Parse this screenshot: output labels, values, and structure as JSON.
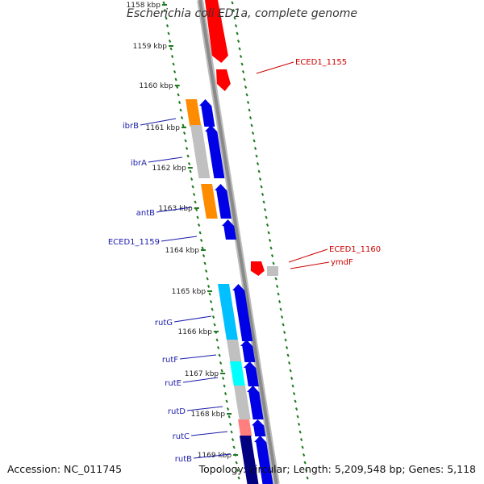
{
  "title": "Escherichia coli ED1a, complete genome",
  "footer": {
    "accession": "Accession: NC_011745",
    "summary": "Topology: circular; Length: 5,209,548 bp; Genes: 5,118"
  },
  "colors": {
    "backbone": "#8a8a8a",
    "tick": "#1e7a1e",
    "forward_gene": "#0000e6",
    "reverse_gene": "#ff0000",
    "label_forward": "#1a1aaa",
    "label_reverse": "#cc0000"
  },
  "kbp_labels": [
    "1158 kbp",
    "1159 kbp",
    "1160 kbp",
    "1161 kbp",
    "1162 kbp",
    "1163 kbp",
    "1164 kbp",
    "1165 kbp",
    "1166 kbp",
    "1167 kbp",
    "1168 kbp",
    "1169 kbp"
  ],
  "genes_forward": [
    {
      "label": "ibrB",
      "cog": "#ff8c00"
    },
    {
      "label": "ibrA",
      "cog": "#c0c0c0"
    },
    {
      "label": "antB",
      "cog": "#ff8c00"
    },
    {
      "label": "ECED1_1159",
      "cog": null
    },
    {
      "label": "rutG",
      "cog": "#00c0ff"
    },
    {
      "label": "rutF",
      "cog": "#c0c0c0"
    },
    {
      "label": "rutE",
      "cog": "#00ffff"
    },
    {
      "label": "rutD",
      "cog": "#c0c0c0"
    },
    {
      "label": "rutC",
      "cog": "#ff7f7f"
    },
    {
      "label": "rutB",
      "cog": "#000080"
    }
  ],
  "genes_reverse": [
    {
      "label": "ECED1_1155"
    },
    {
      "label": "ECED1_1160"
    },
    {
      "label": "ymdF"
    }
  ]
}
